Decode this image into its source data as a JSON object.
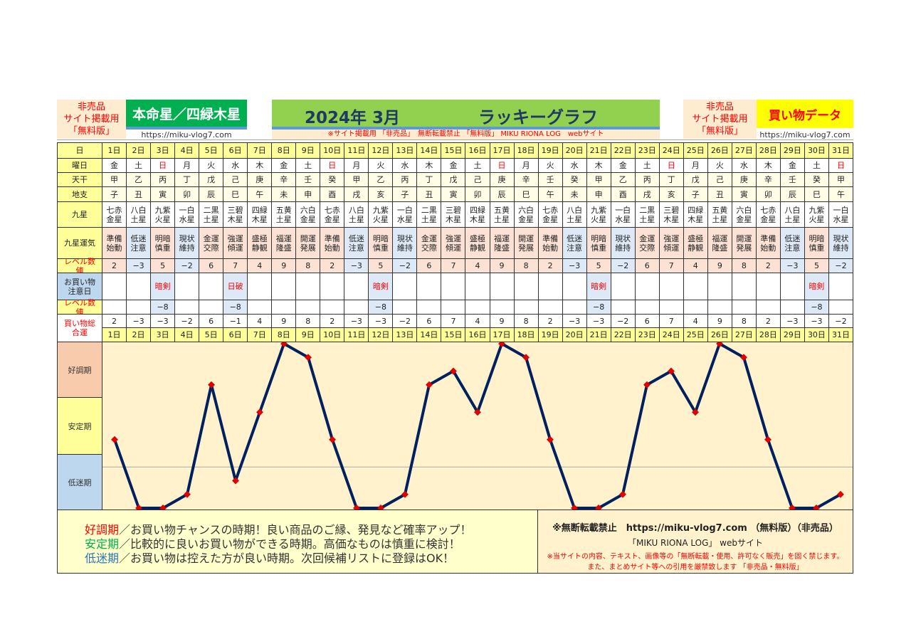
{
  "header": {
    "notice_left": [
      "非売品",
      "サイト掲載用",
      "「無料版」"
    ],
    "honmei": "本命星／四緑木星",
    "url": "https://miku-vlog7.com",
    "month": "2024年 3月",
    "graph_title": "ラッキーグラフ",
    "notice_center": "※サイト掲載用 「非売品」　無断転載禁止 「無料版」 MIKU RIONA LOG　webサイト",
    "notice_right": [
      "非売品",
      "サイト掲載用",
      "「無料版」"
    ],
    "data_title": "買い物データ"
  },
  "row_labels": {
    "day": "日",
    "weekday": "曜日",
    "stem": "天干",
    "branch": "地支",
    "star": "九星",
    "fortune": "九星運気",
    "level": "レベル数値",
    "caution": "お買い物注意日",
    "caution_level": "レベル数値",
    "total": "買い物総合運"
  },
  "days": [
    "1日",
    "2日",
    "3日",
    "4日",
    "5日",
    "6日",
    "7日",
    "8日",
    "9日",
    "10日",
    "11日",
    "12日",
    "13日",
    "14日",
    "15日",
    "16日",
    "17日",
    "18日",
    "19日",
    "20日",
    "21日",
    "22日",
    "23日",
    "24日",
    "25日",
    "26日",
    "27日",
    "28日",
    "29日",
    "30日",
    "31日"
  ],
  "weekdays": [
    "金",
    "土",
    "日",
    "月",
    "火",
    "水",
    "木",
    "金",
    "土",
    "日",
    "月",
    "火",
    "水",
    "木",
    "金",
    "土",
    "日",
    "月",
    "火",
    "水",
    "木",
    "金",
    "土",
    "日",
    "月",
    "火",
    "水",
    "木",
    "金",
    "土",
    "日"
  ],
  "stems": [
    "甲",
    "乙",
    "丙",
    "丁",
    "戊",
    "己",
    "庚",
    "辛",
    "壬",
    "癸",
    "甲",
    "乙",
    "丙",
    "丁",
    "戊",
    "己",
    "庚",
    "辛",
    "壬",
    "癸",
    "甲",
    "乙",
    "丙",
    "丁",
    "戊",
    "己",
    "庚",
    "辛",
    "壬",
    "癸",
    "甲"
  ],
  "branches": [
    "子",
    "丑",
    "寅",
    "卯",
    "辰",
    "巳",
    "午",
    "未",
    "申",
    "酉",
    "戌",
    "亥",
    "子",
    "丑",
    "寅",
    "卯",
    "辰",
    "巳",
    "午",
    "未",
    "申",
    "酉",
    "戌",
    "亥",
    "子",
    "丑",
    "寅",
    "卯",
    "辰",
    "巳",
    "午"
  ],
  "stars": [
    "七赤金星",
    "八白土星",
    "九紫火星",
    "一白水星",
    "二黒土星",
    "三碧木星",
    "四緑木星",
    "五黄土星",
    "六白金星",
    "七赤金星",
    "八白土星",
    "九紫火星",
    "一白水星",
    "二黒土星",
    "三碧木星",
    "四緑木星",
    "五黄土星",
    "六白金星",
    "七赤金星",
    "八白土星",
    "九紫火星",
    "一白水星",
    "二黒土星",
    "三碧木星",
    "四緑木星",
    "五黄土星",
    "六白金星",
    "七赤金星",
    "八白土星",
    "九紫火星",
    "一白水星"
  ],
  "fortunes": [
    "準備始動",
    "低迷注意",
    "明暗慎重",
    "現状維持",
    "金運交際",
    "強運傾運",
    "盛極静観",
    "福運隆盛",
    "開運発展",
    "準備始動",
    "低迷注意",
    "明暗慎重",
    "現状維持",
    "金運交際",
    "強運傾運",
    "盛極静観",
    "福運隆盛",
    "開運発展",
    "準備始動",
    "低迷注意",
    "明暗慎重",
    "現状維持",
    "金運交際",
    "強運傾運",
    "盛極静観",
    "福運隆盛",
    "開運発展",
    "準備始動",
    "低迷注意",
    "明暗慎重",
    "現状維持"
  ],
  "levels": [
    "2",
    "−3",
    "5",
    "−2",
    "6",
    "7",
    "4",
    "9",
    "8",
    "2",
    "−3",
    "5",
    "−2",
    "6",
    "7",
    "4",
    "9",
    "8",
    "2",
    "−3",
    "5",
    "−2",
    "6",
    "7",
    "4",
    "9",
    "8",
    "2",
    "−3",
    "5",
    "−2"
  ],
  "cautions": [
    "",
    "",
    "暗剣",
    "",
    "",
    "日破",
    "",
    "",
    "",
    "",
    "",
    "暗剣",
    "",
    "",
    "",
    "",
    "",
    "",
    "",
    "",
    "暗剣",
    "",
    "",
    "",
    "",
    "",
    "",
    "",
    "",
    "暗剣",
    ""
  ],
  "caution_levels": [
    "",
    "",
    "−8",
    "",
    "",
    "−8",
    "",
    "",
    "",
    "",
    "",
    "−8",
    "",
    "",
    "",
    "",
    "",
    "",
    "",
    "",
    "−8",
    "",
    "",
    "",
    "",
    "",
    "",
    "",
    "",
    "−8",
    ""
  ],
  "totals": [
    "2",
    "−3",
    "−3",
    "−2",
    "6",
    "−1",
    "4",
    "9",
    "8",
    "2",
    "−3",
    "−3",
    "−2",
    "6",
    "7",
    "4",
    "9",
    "8",
    "2",
    "−3",
    "−3",
    "−2",
    "6",
    "7",
    "4",
    "9",
    "8",
    "2",
    "−3",
    "−3",
    "−2"
  ],
  "chart_data": {
    "type": "line",
    "x": [
      "1日",
      "2日",
      "3日",
      "4日",
      "5日",
      "6日",
      "7日",
      "8日",
      "9日",
      "10日",
      "11日",
      "12日",
      "13日",
      "14日",
      "15日",
      "16日",
      "17日",
      "18日",
      "19日",
      "20日",
      "21日",
      "22日",
      "23日",
      "24日",
      "25日",
      "26日",
      "27日",
      "28日",
      "29日",
      "30日",
      "31日"
    ],
    "values": [
      2,
      -3,
      -3,
      -2,
      6,
      -1,
      4,
      9,
      8,
      2,
      -3,
      -3,
      -2,
      6,
      7,
      4,
      9,
      8,
      2,
      -3,
      -3,
      -2,
      6,
      7,
      4,
      9,
      8,
      2,
      -3,
      -3,
      -2
    ],
    "ylim": [
      -3,
      9
    ],
    "zones": [
      "好調期",
      "安定期",
      "低迷期"
    ],
    "line_color": "#002060",
    "marker_color": "#e00000",
    "zero_line": true
  },
  "legend": [
    {
      "term": "好調期",
      "text": "／お買い物チャンスの時期！良い商品のご縁、発見など確率アップ！",
      "color": "#ff0000"
    },
    {
      "term": "安定期",
      "text": "／比較的に良いお買い物ができる時期。高価なものは慎重に検討！",
      "color": "#00b050"
    },
    {
      "term": "低迷期",
      "text": "／お買い物は控えた方が良い時期。次回候補リストに登録はOK！",
      "color": "#2e75b6"
    }
  ],
  "footer": {
    "line1": "※無断転載禁止　https://miku-vlog7.com （無料版）（非売品）",
    "line2": "「MIKU RIONA LOG」 webサイト",
    "line3": "※当サイトの内容、テキスト、画像等の「無断転載・使用、許可なく販売」を固く禁じます。",
    "line4": "また、まとめサイト等への引用を厳禁致します 「非売品・無料版」"
  }
}
